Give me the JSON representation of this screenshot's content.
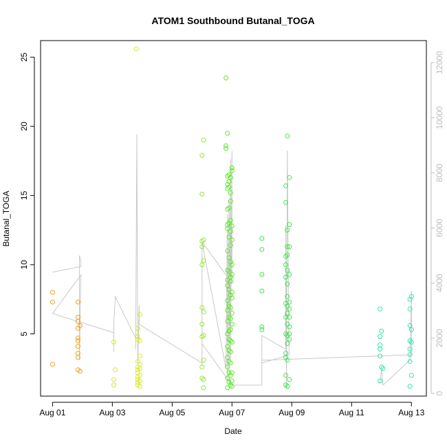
{
  "chart_data": {
    "type": "scatter",
    "title": "ATOM1 Southbound Butanal_TOGA",
    "xlabel": "Date",
    "ylabel": "Butanal_TOGA",
    "x_ticks": [
      "Aug 01",
      "Aug 03",
      "Aug 05",
      "Aug 07",
      "Aug 09",
      "Aug 11",
      "Aug 13"
    ],
    "x_tick_days": [
      1,
      3,
      5,
      7,
      9,
      11,
      13
    ],
    "xlim_days": [
      0.6,
      13.5
    ],
    "y_ticks": [
      5,
      10,
      15,
      20,
      25
    ],
    "ylim": [
      0.5,
      26.2
    ],
    "y2_ticks": [
      0,
      2000,
      4000,
      6000,
      8000,
      10000,
      12000
    ],
    "y2lim": [
      -100,
      12800
    ],
    "grid": false,
    "colors": {
      "axis": "#000000",
      "secondary_axis": "#bdbdbd",
      "altitude_line": "#c8c8c8"
    },
    "series": [
      {
        "color": "#f39c1b",
        "points": [
          [
            1.0,
            8.0
          ],
          [
            1.0,
            7.3
          ],
          [
            1.0,
            2.8
          ],
          [
            1.85,
            7.3
          ],
          [
            1.85,
            6.2
          ],
          [
            1.85,
            5.9
          ],
          [
            1.85,
            5.4
          ],
          [
            1.85,
            4.7
          ],
          [
            1.85,
            4.5
          ],
          [
            1.85,
            4.1
          ],
          [
            1.85,
            3.6
          ],
          [
            1.85,
            3.3
          ],
          [
            1.85,
            2.4
          ],
          [
            1.92,
            5.6
          ],
          [
            1.92,
            2.3
          ]
        ]
      },
      {
        "color": "#d8e82a",
        "points": [
          [
            3.05,
            4.4
          ],
          [
            3.05,
            1.7
          ],
          [
            3.05,
            1.3
          ],
          [
            3.1,
            2.4
          ],
          [
            3.8,
            25.6
          ],
          [
            3.85,
            5.4
          ],
          [
            3.85,
            4.8
          ],
          [
            3.85,
            4.6
          ],
          [
            3.85,
            3.0
          ],
          [
            3.85,
            2.6
          ],
          [
            3.85,
            2.4
          ],
          [
            3.85,
            2.2
          ],
          [
            3.85,
            1.9
          ],
          [
            3.85,
            1.7
          ],
          [
            3.85,
            1.5
          ],
          [
            3.85,
            1.3
          ],
          [
            3.92,
            6.4
          ],
          [
            3.92,
            4.5
          ],
          [
            3.92,
            3.4
          ],
          [
            3.92,
            2.8
          ],
          [
            3.92,
            2.5
          ],
          [
            3.92,
            2.0
          ],
          [
            3.92,
            1.6
          ],
          [
            3.92,
            1.2
          ]
        ]
      },
      {
        "color": "#94e82a",
        "points": [
          [
            6.0,
            17.9
          ],
          [
            6.0,
            15.1
          ],
          [
            6.0,
            11.7
          ],
          [
            6.0,
            11.3
          ],
          [
            6.0,
            10.0
          ],
          [
            6.0,
            6.9
          ],
          [
            6.0,
            5.7
          ],
          [
            6.0,
            4.8
          ],
          [
            6.0,
            2.6
          ],
          [
            6.0,
            1.8
          ],
          [
            6.05,
            19.0
          ],
          [
            6.05,
            11.8
          ],
          [
            6.05,
            10.3
          ],
          [
            6.05,
            6.6
          ],
          [
            6.05,
            4.9
          ],
          [
            6.05,
            3.1
          ],
          [
            6.05,
            1.7
          ],
          [
            6.05,
            1.1
          ]
        ]
      },
      {
        "color": "#5ce82a",
        "points": [
          [
            6.8,
            23.5
          ],
          [
            6.8,
            18.6
          ],
          [
            6.8,
            18.4
          ],
          [
            6.85,
            19.5
          ],
          [
            6.85,
            16.4
          ],
          [
            6.85,
            15.8
          ],
          [
            6.85,
            15.5
          ],
          [
            6.85,
            14.0
          ],
          [
            6.85,
            12.9
          ],
          [
            6.85,
            12.6
          ],
          [
            6.85,
            11.0
          ],
          [
            6.85,
            9.6
          ],
          [
            6.85,
            8.9
          ],
          [
            6.85,
            8.5
          ],
          [
            6.85,
            7.4
          ],
          [
            6.85,
            6.7
          ],
          [
            6.85,
            5.9
          ],
          [
            6.85,
            5.0
          ],
          [
            6.85,
            4.1
          ],
          [
            6.85,
            3.3
          ],
          [
            6.85,
            2.6
          ],
          [
            6.85,
            1.8
          ],
          [
            6.85,
            1.1
          ],
          [
            6.9,
            16.5
          ],
          [
            6.9,
            16.0
          ],
          [
            6.9,
            15.6
          ],
          [
            6.9,
            14.1
          ],
          [
            6.9,
            13.0
          ],
          [
            6.9,
            12.0
          ],
          [
            6.9,
            10.5
          ],
          [
            6.9,
            9.5
          ],
          [
            6.9,
            8.2
          ],
          [
            6.9,
            7.0
          ],
          [
            6.9,
            6.2
          ],
          [
            6.9,
            5.2
          ],
          [
            6.9,
            4.6
          ],
          [
            6.9,
            3.8
          ],
          [
            6.9,
            3.0
          ],
          [
            6.9,
            2.2
          ],
          [
            6.9,
            1.5
          ],
          [
            6.95,
            16.3
          ],
          [
            6.95,
            15.2
          ],
          [
            6.95,
            14.6
          ],
          [
            6.95,
            13.2
          ],
          [
            6.95,
            12.4
          ],
          [
            6.95,
            11.4
          ],
          [
            6.95,
            10.2
          ],
          [
            6.95,
            9.1
          ],
          [
            6.95,
            8.8
          ],
          [
            6.95,
            7.8
          ],
          [
            6.95,
            6.9
          ],
          [
            6.95,
            6.1
          ],
          [
            6.95,
            5.3
          ],
          [
            6.95,
            4.5
          ],
          [
            6.95,
            3.7
          ],
          [
            6.95,
            2.9
          ],
          [
            6.95,
            2.0
          ],
          [
            6.95,
            1.3
          ],
          [
            7.0,
            17.0
          ],
          [
            7.0,
            16.8
          ],
          [
            7.0,
            12.8
          ],
          [
            7.0,
            11.8
          ],
          [
            7.0,
            10.0
          ],
          [
            7.0,
            9.3
          ],
          [
            7.0,
            8.0
          ],
          [
            7.0,
            7.6
          ],
          [
            7.0,
            6.5
          ],
          [
            7.0,
            5.7
          ],
          [
            7.0,
            4.4
          ],
          [
            7.0,
            2.2
          ],
          [
            7.0,
            1.6
          ],
          [
            7.0,
            1.2
          ]
        ]
      },
      {
        "color": "#3ce84a",
        "points": [
          [
            8.0,
            11.9
          ],
          [
            8.0,
            11.1
          ],
          [
            8.0,
            9.3
          ],
          [
            8.0,
            8.1
          ],
          [
            8.0,
            5.5
          ],
          [
            8.0,
            5.3
          ],
          [
            8.8,
            15.7
          ],
          [
            8.8,
            14.5
          ],
          [
            8.8,
            10.6
          ],
          [
            8.8,
            10.0
          ],
          [
            8.8,
            9.1
          ],
          [
            8.8,
            7.2
          ],
          [
            8.8,
            6.2
          ],
          [
            8.8,
            5.0
          ],
          [
            8.8,
            3.6
          ],
          [
            8.8,
            3.3
          ],
          [
            8.8,
            2.0
          ],
          [
            8.8,
            1.3
          ],
          [
            8.85,
            19.3
          ],
          [
            8.85,
            12.5
          ],
          [
            8.85,
            11.3
          ],
          [
            8.85,
            10.7
          ],
          [
            8.85,
            9.6
          ],
          [
            8.85,
            8.6
          ],
          [
            8.85,
            7.7
          ],
          [
            8.85,
            7.0
          ],
          [
            8.85,
            6.5
          ],
          [
            8.85,
            5.7
          ],
          [
            8.85,
            4.9
          ],
          [
            8.85,
            4.3
          ],
          [
            8.85,
            3.1
          ],
          [
            8.85,
            1.2
          ],
          [
            8.92,
            16.3
          ],
          [
            8.92,
            12.9
          ],
          [
            8.92,
            11.3
          ],
          [
            8.92,
            9.3
          ],
          [
            8.92,
            7.3
          ],
          [
            8.92,
            6.8
          ],
          [
            8.92,
            6.2
          ],
          [
            8.92,
            5.5
          ],
          [
            8.92,
            5.0
          ],
          [
            8.92,
            4.6
          ],
          [
            8.92,
            1.7
          ]
        ]
      },
      {
        "color": "#2ae8a6",
        "points": [
          [
            11.95,
            6.8
          ],
          [
            11.95,
            4.8
          ],
          [
            11.95,
            4.2
          ],
          [
            11.95,
            3.9
          ],
          [
            11.95,
            3.4
          ],
          [
            11.95,
            1.6
          ],
          [
            12.0,
            5.2
          ],
          [
            12.0,
            2.6
          ],
          [
            12.05,
            2.5
          ],
          [
            12.95,
            7.5
          ],
          [
            12.95,
            6.8
          ],
          [
            12.95,
            5.6
          ],
          [
            12.95,
            4.5
          ],
          [
            12.95,
            3.9
          ],
          [
            12.95,
            3.5
          ],
          [
            12.95,
            3.0
          ],
          [
            12.95,
            1.2
          ],
          [
            13.0,
            7.7
          ],
          [
            13.0,
            5.3
          ],
          [
            13.0,
            4.4
          ],
          [
            13.0,
            2.0
          ]
        ]
      }
    ],
    "altitude_track": [
      [
        1.0,
        4400
      ],
      [
        1.95,
        4600
      ],
      [
        1.95,
        4800
      ],
      [
        1.9,
        5000
      ],
      [
        1.9,
        1200
      ],
      [
        1.95,
        4300
      ],
      [
        1.0,
        2900
      ],
      [
        3.05,
        2200
      ],
      [
        3.05,
        1500
      ],
      [
        3.05,
        2600
      ],
      [
        3.1,
        3500
      ],
      [
        3.78,
        2000
      ],
      [
        3.78,
        1600
      ],
      [
        3.82,
        9400
      ],
      [
        3.85,
        1100
      ],
      [
        3.9,
        3200
      ],
      [
        3.9,
        2500
      ],
      [
        6.0,
        1100
      ],
      [
        6.0,
        1000
      ],
      [
        6.0,
        2000
      ],
      [
        6.0,
        5500
      ],
      [
        6.8,
        900
      ],
      [
        6.85,
        6500
      ],
      [
        6.85,
        400
      ],
      [
        6.9,
        7000
      ],
      [
        6.9,
        300
      ],
      [
        6.95,
        8500
      ],
      [
        6.95,
        1200
      ],
      [
        7.0,
        8800
      ],
      [
        7.0,
        4000
      ],
      [
        6.0,
        5500
      ],
      [
        6.0,
        1800
      ],
      [
        7.0,
        300
      ],
      [
        8.0,
        300
      ],
      [
        8.0,
        2100
      ],
      [
        8.8,
        1600
      ],
      [
        8.8,
        6100
      ],
      [
        8.82,
        200
      ],
      [
        8.85,
        8800
      ],
      [
        8.9,
        1800
      ],
      [
        8.92,
        1400
      ],
      [
        8.0,
        1100
      ],
      [
        8.0,
        1200
      ],
      [
        13.0,
        1400
      ],
      [
        13.0,
        3700
      ],
      [
        12.95,
        1200
      ],
      [
        12.05,
        300
      ],
      [
        12.0,
        900
      ],
      [
        11.95,
        400
      ]
    ]
  }
}
